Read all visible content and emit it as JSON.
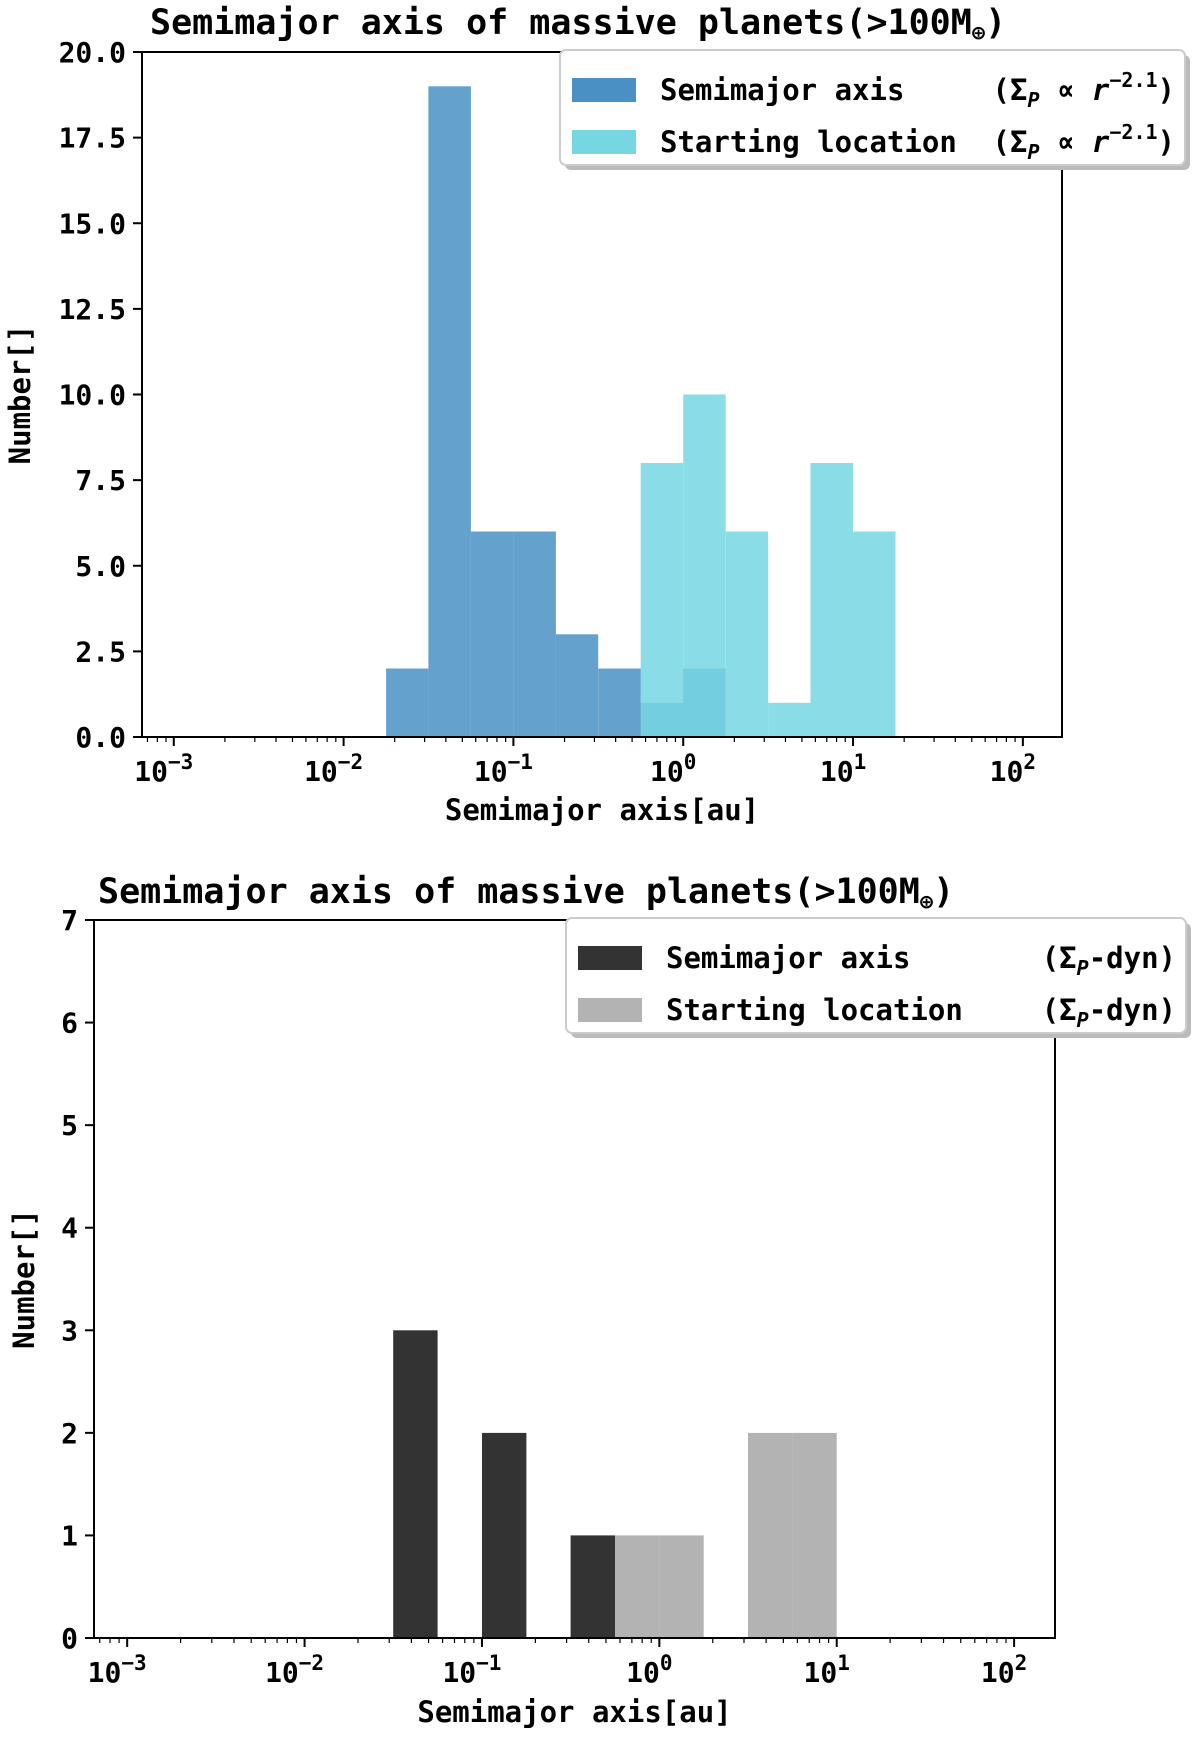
{
  "chart_data": [
    {
      "type": "bar",
      "title": "Semimajor axis of massive planets(>100M",
      "title_symbol": "⊕",
      "title_close": ")",
      "xlabel": "Semimajor axis[au]",
      "ylabel": "Number[]",
      "xscale": "log",
      "xlim": [
        0.00065,
        170
      ],
      "ylim": [
        0,
        20
      ],
      "yticks": [
        "0.0",
        "2.5",
        "5.0",
        "7.5",
        "10.0",
        "12.5",
        "15.0",
        "17.5",
        "20.0"
      ],
      "xticks": [
        {
          "base": "10",
          "exp": "−3"
        },
        {
          "base": "10",
          "exp": "−2"
        },
        {
          "base": "10",
          "exp": "−1"
        },
        {
          "base": "10",
          "exp": "0"
        },
        {
          "base": "10",
          "exp": "1"
        },
        {
          "base": "10",
          "exp": "2"
        }
      ],
      "legend_position": "top-right",
      "series": [
        {
          "name": "Semimajor axis",
          "name_suffix": "(Σ",
          "name_suffix_sub": "P",
          "name_suffix_tail": " ∝ r",
          "name_suffix_sup": "−2.1",
          "name_suffix_close": ")",
          "color": "#4a90c4",
          "bin_edges": [
            0.0178,
            0.0316,
            0.0562,
            0.1,
            0.178,
            0.316,
            0.562,
            1.0,
            1.78,
            3.16,
            5.62,
            10.0,
            17.8
          ],
          "values": [
            2,
            19,
            6,
            6,
            3,
            2,
            1,
            2,
            0,
            0,
            0,
            0
          ]
        },
        {
          "name": "Starting location",
          "name_suffix": "(Σ",
          "name_suffix_sub": "P",
          "name_suffix_tail": " ∝ r",
          "name_suffix_sup": "−2.1",
          "name_suffix_close": ")",
          "color": "#76d7e2",
          "bin_edges": [
            0.0178,
            0.0316,
            0.0562,
            0.1,
            0.178,
            0.316,
            0.562,
            1.0,
            1.78,
            3.16,
            5.62,
            10.0,
            17.8
          ],
          "values": [
            0,
            0,
            0,
            0,
            0,
            0,
            8,
            10,
            6,
            1,
            8,
            6
          ]
        }
      ]
    },
    {
      "type": "bar",
      "title": "Semimajor axis of massive planets(>100M",
      "title_symbol": "⊕",
      "title_close": ")",
      "xlabel": "Semimajor axis[au]",
      "ylabel": "Number[]",
      "xscale": "log",
      "xlim": [
        0.00065,
        170
      ],
      "ylim": [
        0,
        7
      ],
      "yticks": [
        "0",
        "1",
        "2",
        "3",
        "4",
        "5",
        "6",
        "7"
      ],
      "xticks": [
        {
          "base": "10",
          "exp": "−3"
        },
        {
          "base": "10",
          "exp": "−2"
        },
        {
          "base": "10",
          "exp": "−1"
        },
        {
          "base": "10",
          "exp": "0"
        },
        {
          "base": "10",
          "exp": "1"
        },
        {
          "base": "10",
          "exp": "2"
        }
      ],
      "legend_position": "top-right",
      "series": [
        {
          "name": "Semimajor axis",
          "name_suffix": "(Σ",
          "name_suffix_sub": "P",
          "name_suffix_tail": "-dyn)",
          "color": "#333333",
          "bin_edges": [
            0.0316,
            0.0562,
            0.1,
            0.178,
            0.316,
            0.562,
            1.0,
            1.78,
            3.16,
            5.62,
            10.0
          ],
          "values": [
            3,
            0,
            2,
            0,
            1,
            0,
            0,
            0,
            0,
            0
          ]
        },
        {
          "name": "Starting location",
          "name_suffix": "(Σ",
          "name_suffix_sub": "P",
          "name_suffix_tail": "-dyn)",
          "color": "#b3b3b3",
          "bin_edges": [
            0.0316,
            0.0562,
            0.1,
            0.178,
            0.316,
            0.562,
            1.0,
            1.78,
            3.16,
            5.62,
            10.0
          ],
          "values": [
            0,
            0,
            0,
            0,
            0,
            1,
            1,
            0,
            2,
            2
          ]
        }
      ]
    }
  ]
}
